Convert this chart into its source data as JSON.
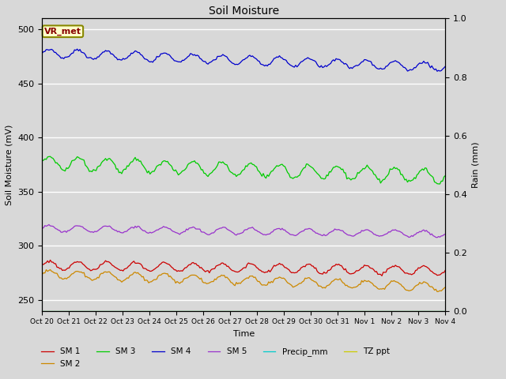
{
  "title": "Soil Moisture",
  "ylabel_left": "Soil Moisture (mV)",
  "ylabel_right": "Rain (mm)",
  "xlabel": "Time",
  "ylim_left": [
    240,
    510
  ],
  "ylim_right": [
    0.0,
    1.0
  ],
  "background_color": "#d8d8d8",
  "x_tick_labels": [
    "Oct 20",
    "Oct 21",
    "Oct 22",
    "Oct 23",
    "Oct 24",
    "Oct 25",
    "Oct 26",
    "Oct 27",
    "Oct 28",
    "Oct 29",
    "Oct 30",
    "Oct 31",
    "Nov 1",
    "Nov 2",
    "Nov 3",
    "Nov 4"
  ],
  "annotation_text": "VR_met",
  "series_colors": {
    "SM1": "#cc0000",
    "SM2": "#cc8800",
    "SM3": "#00cc00",
    "SM4": "#0000cc",
    "SM5": "#9933cc",
    "Precip_mm": "#00cccc",
    "TZ_ppt": "#cccc00"
  },
  "legend_labels": [
    "SM 1",
    "SM 2",
    "SM 3",
    "SM 4",
    "SM 5",
    "Precip_mm",
    "TZ ppt"
  ],
  "n_points": 300
}
